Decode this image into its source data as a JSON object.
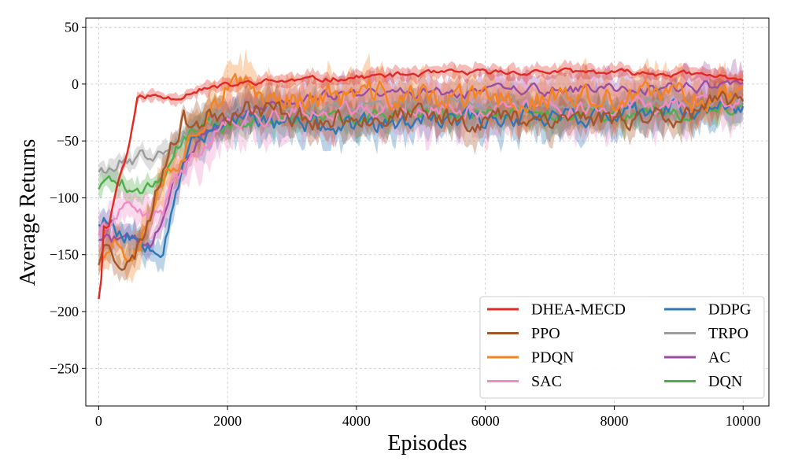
{
  "chart_data": {
    "type": "line",
    "title": "",
    "xlabel": "Episodes",
    "ylabel": "Average Returns",
    "xlim": [
      -200,
      10400
    ],
    "ylim": [
      -283,
      58
    ],
    "xticks": [
      0,
      2000,
      4000,
      6000,
      8000,
      10000
    ],
    "xtick_labels": [
      "0",
      "2000",
      "4000",
      "6000",
      "8000",
      "10000"
    ],
    "yticks": [
      -250,
      -200,
      -150,
      -100,
      -50,
      0,
      50
    ],
    "ytick_labels": [
      "−250",
      "−200",
      "−150",
      "−100",
      "−50",
      "0",
      "50"
    ],
    "grid": true,
    "legend_position": "lower-right",
    "legend_columns": 2,
    "series": [
      {
        "name": "DHEA-MECD",
        "color": "#e02a23",
        "band": 5,
        "noise": 2,
        "seed": 11,
        "anchors": [
          [
            0,
            -188
          ],
          [
            40,
            -170
          ],
          [
            80,
            -125
          ],
          [
            150,
            -125
          ],
          [
            300,
            -85
          ],
          [
            450,
            -60
          ],
          [
            600,
            -13
          ],
          [
            800,
            -10
          ],
          [
            1000,
            -12
          ],
          [
            1200,
            -12
          ],
          [
            1500,
            -5
          ],
          [
            1800,
            -3
          ],
          [
            2500,
            2
          ],
          [
            3000,
            3
          ],
          [
            4000,
            6
          ],
          [
            5000,
            9
          ],
          [
            6000,
            10
          ],
          [
            7000,
            11
          ],
          [
            8000,
            10
          ],
          [
            9000,
            9
          ],
          [
            10000,
            5
          ]
        ]
      },
      {
        "name": "PPO",
        "color": "#a3552c",
        "band": 12,
        "noise": 8,
        "seed": 23,
        "anchors": [
          [
            0,
            -155
          ],
          [
            150,
            -135
          ],
          [
            300,
            -150
          ],
          [
            500,
            -160
          ],
          [
            700,
            -130
          ],
          [
            900,
            -95
          ],
          [
            1100,
            -50
          ],
          [
            1300,
            -30
          ],
          [
            1500,
            -35
          ],
          [
            1800,
            -25
          ],
          [
            2200,
            -20
          ],
          [
            3000,
            -25
          ],
          [
            3500,
            -35
          ],
          [
            4000,
            -25
          ],
          [
            5000,
            -30
          ],
          [
            6000,
            -30
          ],
          [
            7000,
            -28
          ],
          [
            8000,
            -30
          ],
          [
            9000,
            -25
          ],
          [
            10000,
            -18
          ]
        ]
      },
      {
        "name": "PDQN",
        "color": "#f5831e",
        "band": 15,
        "noise": 10,
        "seed": 37,
        "anchors": [
          [
            0,
            -150
          ],
          [
            100,
            -135
          ],
          [
            300,
            -140
          ],
          [
            500,
            -145
          ],
          [
            700,
            -120
          ],
          [
            900,
            -95
          ],
          [
            1100,
            -70
          ],
          [
            1400,
            -50
          ],
          [
            1700,
            -15
          ],
          [
            2000,
            -5
          ],
          [
            3000,
            -12
          ],
          [
            4000,
            -10
          ],
          [
            5000,
            -12
          ],
          [
            6000,
            -15
          ],
          [
            7000,
            -12
          ],
          [
            8000,
            -15
          ],
          [
            9000,
            -10
          ],
          [
            10000,
            -8
          ]
        ]
      },
      {
        "name": "SAC",
        "color": "#f28ac3",
        "band": 18,
        "noise": 6,
        "seed": 41,
        "anchors": [
          [
            0,
            -130
          ],
          [
            200,
            -120
          ],
          [
            400,
            -112
          ],
          [
            600,
            -115
          ],
          [
            800,
            -120
          ],
          [
            1000,
            -110
          ],
          [
            1200,
            -85
          ],
          [
            1500,
            -60
          ],
          [
            1800,
            -40
          ],
          [
            2200,
            -30
          ],
          [
            3000,
            -25
          ],
          [
            4000,
            -22
          ],
          [
            5000,
            -22
          ],
          [
            6000,
            -22
          ],
          [
            7000,
            -20
          ],
          [
            8000,
            -20
          ],
          [
            9000,
            -18
          ],
          [
            10000,
            -15
          ]
        ]
      },
      {
        "name": "DDPG",
        "color": "#2f78b6",
        "band": 14,
        "noise": 7,
        "seed": 53,
        "anchors": [
          [
            0,
            -120
          ],
          [
            100,
            -115
          ],
          [
            300,
            -130
          ],
          [
            500,
            -135
          ],
          [
            700,
            -136
          ],
          [
            900,
            -138
          ],
          [
            1000,
            -140
          ],
          [
            1200,
            -90
          ],
          [
            1400,
            -55
          ],
          [
            1700,
            -40
          ],
          [
            2000,
            -30
          ],
          [
            3000,
            -35
          ],
          [
            4000,
            -38
          ],
          [
            5000,
            -35
          ],
          [
            6000,
            -30
          ],
          [
            7000,
            -25
          ],
          [
            8000,
            -30
          ],
          [
            9000,
            -22
          ],
          [
            10000,
            -20
          ]
        ]
      },
      {
        "name": "TRPO",
        "color": "#9c9c9c",
        "band": 10,
        "noise": 5,
        "seed": 67,
        "anchors": [
          [
            0,
            -75
          ],
          [
            150,
            -72
          ],
          [
            300,
            -68
          ],
          [
            500,
            -70
          ],
          [
            700,
            -62
          ],
          [
            900,
            -60
          ],
          [
            1100,
            -50
          ],
          [
            1400,
            -40
          ],
          [
            1800,
            -28
          ],
          [
            2500,
            -22
          ],
          [
            3000,
            -20
          ],
          [
            4000,
            -20
          ],
          [
            5000,
            -20
          ],
          [
            6000,
            -18
          ],
          [
            7000,
            -18
          ],
          [
            8000,
            -18
          ],
          [
            9000,
            -15
          ],
          [
            10000,
            -15
          ]
        ]
      },
      {
        "name": "AC",
        "color": "#9a4ea1",
        "band": 12,
        "noise": 4,
        "seed": 71,
        "anchors": [
          [
            0,
            -135
          ],
          [
            200,
            -137
          ],
          [
            400,
            -135
          ],
          [
            600,
            -138
          ],
          [
            800,
            -142
          ],
          [
            1000,
            -120
          ],
          [
            1200,
            -80
          ],
          [
            1500,
            -55
          ],
          [
            1800,
            -35
          ],
          [
            2200,
            -25
          ],
          [
            3000,
            -15
          ],
          [
            4000,
            -8
          ],
          [
            5000,
            -8
          ],
          [
            6000,
            -6
          ],
          [
            7000,
            -5
          ],
          [
            8000,
            -5
          ],
          [
            9000,
            -3
          ],
          [
            10000,
            -2
          ]
        ]
      },
      {
        "name": "DQN",
        "color": "#4dae4a",
        "band": 10,
        "noise": 5,
        "seed": 89,
        "anchors": [
          [
            0,
            -90
          ],
          [
            200,
            -85
          ],
          [
            400,
            -88
          ],
          [
            600,
            -92
          ],
          [
            800,
            -92
          ],
          [
            1000,
            -85
          ],
          [
            1200,
            -55
          ],
          [
            1500,
            -38
          ],
          [
            1800,
            -35
          ],
          [
            2000,
            -40
          ],
          [
            2500,
            -30
          ],
          [
            3000,
            -28
          ],
          [
            4000,
            -28
          ],
          [
            5000,
            -27
          ],
          [
            6000,
            -26
          ],
          [
            7000,
            -25
          ],
          [
            8000,
            -27
          ],
          [
            9000,
            -26
          ],
          [
            10000,
            -20
          ]
        ]
      }
    ]
  }
}
